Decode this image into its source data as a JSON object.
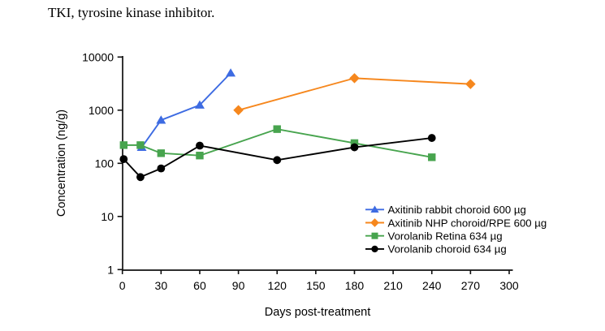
{
  "caption": "TKI, tyrosine kinase inhibitor.",
  "chart_data": {
    "type": "line",
    "title": "",
    "xlabel": "Days post-treatment",
    "ylabel": "Concentration (ng/g)",
    "x_scale": "linear",
    "y_scale": "log",
    "xlim": [
      0,
      300
    ],
    "ylim": [
      1,
      10000
    ],
    "x_ticks": [
      0,
      30,
      60,
      90,
      120,
      150,
      180,
      210,
      240,
      270,
      300
    ],
    "y_ticks": [
      1,
      10,
      100,
      1000,
      10000
    ],
    "grid": false,
    "legend_position": "inside lower right",
    "series": [
      {
        "name": "Axitinib rabbit choroid 600 µg",
        "color": "#3D6BE2",
        "marker": "triangle",
        "x": [
          15,
          30,
          60,
          84
        ],
        "y": [
          200,
          650,
          1250,
          5000
        ]
      },
      {
        "name": "Axitinib NHP choroid/RPE 600 µg",
        "color": "#F6871D",
        "marker": "diamond",
        "x": [
          90,
          180,
          270
        ],
        "y": [
          1000,
          4000,
          3100
        ]
      },
      {
        "name": "Vorolanib Retina 634 µg",
        "color": "#47A44E",
        "marker": "square",
        "x": [
          1,
          14,
          30,
          60,
          120,
          180,
          240
        ],
        "y": [
          220,
          220,
          155,
          140,
          440,
          240,
          130
        ]
      },
      {
        "name": "Vorolanib choroid 634 µg",
        "color": "#000000",
        "marker": "circle",
        "x": [
          1,
          14,
          30,
          60,
          120,
          180,
          240
        ],
        "y": [
          120,
          55,
          80,
          215,
          115,
          200,
          300
        ]
      }
    ]
  }
}
